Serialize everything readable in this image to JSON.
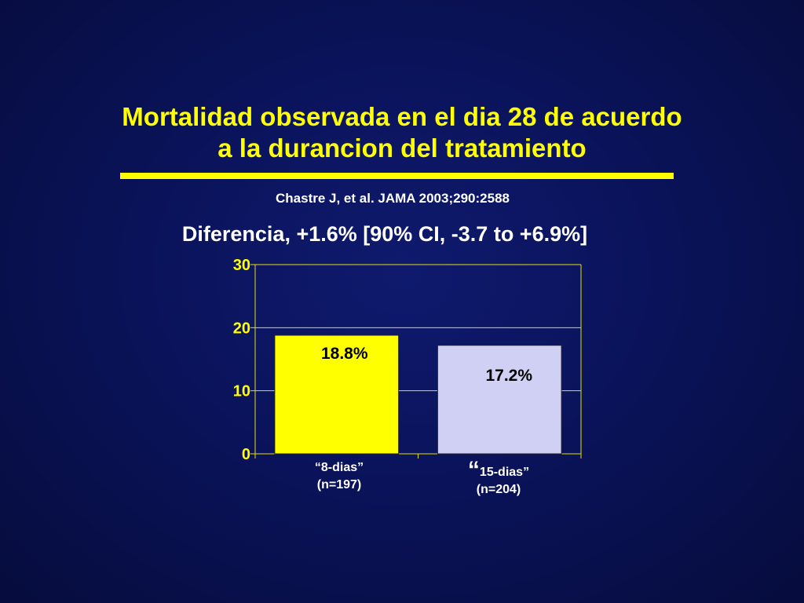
{
  "slide": {
    "title_line1": "Mortalidad observada en el dia 28 de acuerdo",
    "title_line2": "a la durancion del tratamiento",
    "citation": "Chastre J, et al. JAMA 2003;290:2588",
    "subtitle": "Diferencia, +1.6% [90% CI, -3.7 to +6.9%]"
  },
  "colors": {
    "title": "#ffff00",
    "grid": "#e8e000",
    "bar1": "#ffff00",
    "bar2": "#d0d0f4"
  },
  "chart_data": {
    "type": "bar",
    "categories": [
      "“8-dias”\n(n=197)",
      "“15-dias”\n(n=204)"
    ],
    "category_lines": [
      [
        "“8-dias”",
        "(n=197)"
      ],
      [
        "“",
        "15-dias”",
        "(n=204)"
      ]
    ],
    "values": [
      18.8,
      17.2
    ],
    "data_labels": [
      "18.8%",
      "17.2%"
    ],
    "yticks": [
      0,
      10,
      20,
      30
    ],
    "ylim": [
      0,
      30
    ],
    "grid": true,
    "legend": "none"
  }
}
